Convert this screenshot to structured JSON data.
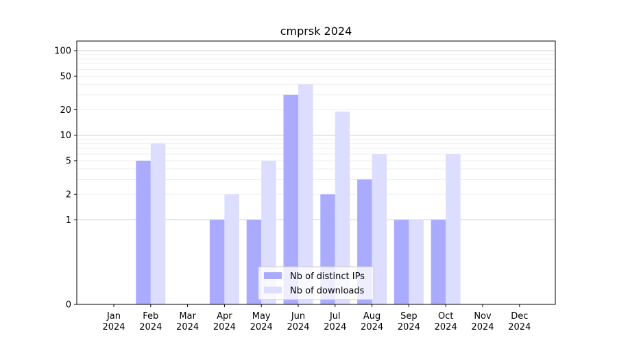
{
  "chart_data": {
    "type": "bar",
    "title": "cmprsk 2024",
    "xlabel": "",
    "ylabel": "",
    "y_scale": "symlog",
    "ylim": [
      0,
      130
    ],
    "y_ticks": [
      0,
      1,
      2,
      5,
      10,
      20,
      50,
      100
    ],
    "y_tick_labels": [
      "0",
      "1",
      "2",
      "5",
      "10",
      "20",
      "50",
      "100"
    ],
    "categories": [
      [
        "Jan",
        "2024"
      ],
      [
        "Feb",
        "2024"
      ],
      [
        "Mar",
        "2024"
      ],
      [
        "Apr",
        "2024"
      ],
      [
        "May",
        "2024"
      ],
      [
        "Jun",
        "2024"
      ],
      [
        "Jul",
        "2024"
      ],
      [
        "Aug",
        "2024"
      ],
      [
        "Sep",
        "2024"
      ],
      [
        "Oct",
        "2024"
      ],
      [
        "Nov",
        "2024"
      ],
      [
        "Dec",
        "2024"
      ]
    ],
    "series": [
      {
        "name": "Nb of distinct IPs",
        "color": "#aaaaff",
        "values": [
          0,
          5,
          0,
          1,
          1,
          30,
          2,
          3,
          1,
          1,
          0,
          0
        ]
      },
      {
        "name": "Nb of downloads",
        "color": "#ddddff",
        "values": [
          0,
          8,
          0,
          2,
          5,
          40,
          19,
          6,
          1,
          6,
          0,
          0
        ]
      }
    ],
    "legend_position": "bottom-center",
    "grid": true
  }
}
